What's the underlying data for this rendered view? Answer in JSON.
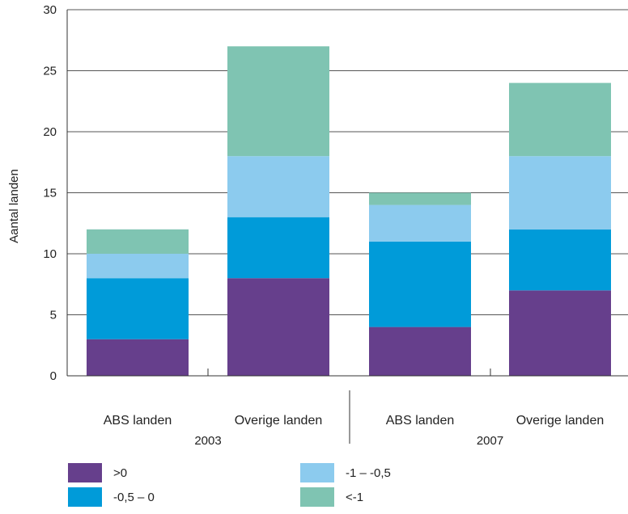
{
  "chart_data": {
    "type": "bar",
    "stacked": true,
    "ylabel": "Aantal landen",
    "ylim": [
      0,
      30
    ],
    "yticks": [
      0,
      5,
      10,
      15,
      20,
      25,
      30
    ],
    "grid": true,
    "groups": [
      "2003",
      "2007"
    ],
    "categories": [
      "ABS landen",
      "Overige landen",
      "ABS landen",
      "Overige landen"
    ],
    "category_group": [
      0,
      0,
      1,
      1
    ],
    "series": [
      {
        "name": ">0",
        "color": "#663f8c",
        "values": [
          3,
          8,
          4,
          7
        ]
      },
      {
        "name": "-0,5 – 0",
        "color": "#009bd9",
        "values": [
          5,
          5,
          7,
          5
        ]
      },
      {
        "name": "-1 – -0,5",
        "color": "#8ccbee",
        "values": [
          2,
          5,
          3,
          6
        ]
      },
      {
        "name": "<-1",
        "color": "#7fc4b2",
        "values": [
          2,
          9,
          1,
          6
        ]
      }
    ],
    "legend_position": "bottom"
  }
}
